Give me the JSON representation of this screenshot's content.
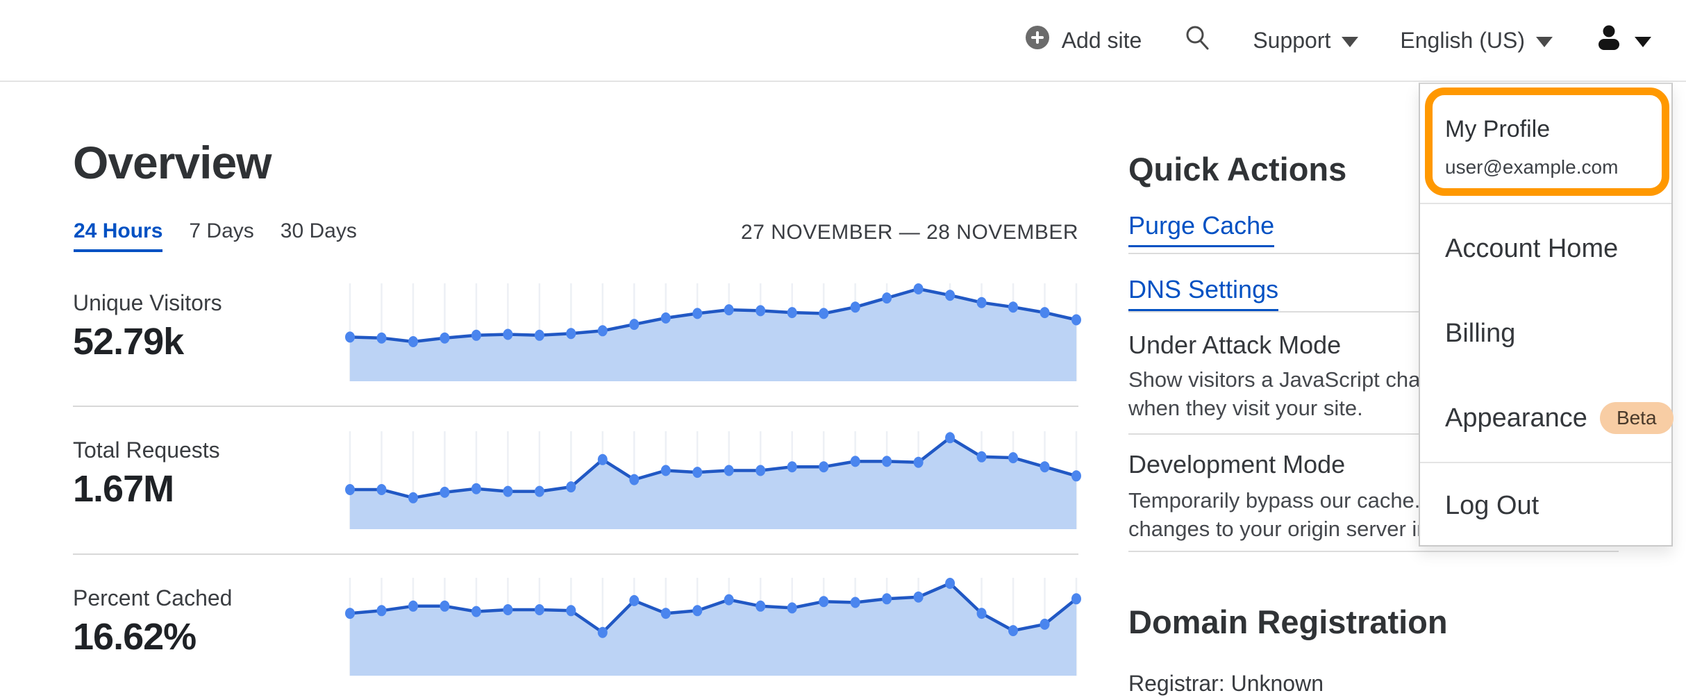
{
  "navbar": {
    "add_site_label": "Add site",
    "support_label": "Support",
    "language_label": "English (US)",
    "icons": {
      "add_site": "plus-circle",
      "search": "magnifier",
      "menu_caret": "triangle-down",
      "account": "person-silhouette"
    }
  },
  "overview": {
    "title": "Overview",
    "tabs": [
      {
        "label": "24 Hours",
        "active": true
      },
      {
        "label": "7 Days",
        "active": false
      },
      {
        "label": "30 Days",
        "active": false
      }
    ],
    "date_range": "27 NOVEMBER — 28 NOVEMBER",
    "metrics": [
      {
        "label": "Unique Visitors",
        "value": "52.79k"
      },
      {
        "label": "Total Requests",
        "value": "1.67M"
      },
      {
        "label": "Percent Cached",
        "value": "16.62%"
      }
    ]
  },
  "chart_data": [
    {
      "type": "area",
      "title": "Unique Visitors",
      "summary_value": "52.79k",
      "xlabel": "",
      "ylabel": "",
      "x_points": 24,
      "x_range": "27 November – 28 November (24-hour period, no tick labels shown)",
      "ylim": [
        0,
        1
      ],
      "value_scale": "normalized 0-1 (chart shows no numeric axis labels)",
      "grid": "vertical gridlines at every data point",
      "legend": "none",
      "values": [
        0.47,
        0.46,
        0.42,
        0.46,
        0.49,
        0.5,
        0.49,
        0.51,
        0.54,
        0.61,
        0.68,
        0.73,
        0.77,
        0.76,
        0.74,
        0.73,
        0.8,
        0.9,
        1.0,
        0.93,
        0.85,
        0.8,
        0.74,
        0.66
      ],
      "colors": {
        "line": "#2158c4",
        "dot": "#4a85ee",
        "fill": "#bcd3f5",
        "grid": "#edf0f5"
      }
    },
    {
      "type": "area",
      "title": "Total Requests",
      "summary_value": "1.67M",
      "xlabel": "",
      "ylabel": "",
      "x_points": 24,
      "x_range": "27 November – 28 November (24-hour period, no tick labels shown)",
      "ylim": [
        0,
        1
      ],
      "value_scale": "normalized 0-1 (chart shows no numeric axis labels)",
      "grid": "vertical gridlines at every data point",
      "legend": "none",
      "values": [
        0.42,
        0.42,
        0.33,
        0.39,
        0.43,
        0.4,
        0.4,
        0.45,
        0.75,
        0.53,
        0.63,
        0.61,
        0.63,
        0.63,
        0.67,
        0.67,
        0.73,
        0.73,
        0.72,
        0.99,
        0.78,
        0.77,
        0.67,
        0.57
      ],
      "colors": {
        "line": "#2158c4",
        "dot": "#4a85ee",
        "fill": "#bcd3f5",
        "grid": "#edf0f5"
      }
    },
    {
      "type": "area",
      "title": "Percent Cached",
      "summary_value": "16.62%",
      "xlabel": "",
      "ylabel": "",
      "x_points": 24,
      "x_range": "27 November – 28 November (24-hour period, no tick labels shown)",
      "ylim": [
        0,
        1
      ],
      "value_scale": "normalized 0-1 (chart shows no numeric axis labels)",
      "grid": "vertical gridlines at every data point",
      "legend": "none",
      "values": [
        0.67,
        0.7,
        0.75,
        0.75,
        0.69,
        0.71,
        0.71,
        0.7,
        0.46,
        0.81,
        0.67,
        0.7,
        0.82,
        0.75,
        0.73,
        0.8,
        0.79,
        0.83,
        0.85,
        1.0,
        0.67,
        0.48,
        0.55,
        0.83
      ],
      "colors": {
        "line": "#2158c4",
        "dot": "#4a85ee",
        "fill": "#bcd3f5",
        "grid": "#edf0f5"
      }
    }
  ],
  "quick_actions": {
    "title": "Quick Actions",
    "links": [
      {
        "label": "Purge Cache"
      },
      {
        "label": "DNS Settings"
      }
    ],
    "toggles": [
      {
        "title": "Under Attack Mode",
        "description_lines": [
          "Show visitors a JavaScript challenge",
          "when they visit your site."
        ]
      },
      {
        "title": "Development Mode",
        "description_lines": [
          "Temporarily bypass our cache. See",
          "changes to your origin server in realtime."
        ]
      }
    ]
  },
  "domain_registration": {
    "title": "Domain Registration",
    "registrar_line": "Registrar: Unknown"
  },
  "user_menu": {
    "profile": {
      "label": "My Profile",
      "email": "user@example.com",
      "highlighted": true
    },
    "items": [
      {
        "label": "Account Home"
      },
      {
        "label": "Billing"
      },
      {
        "label": "Appearance",
        "badge": "Beta"
      }
    ],
    "logout_label": "Log Out"
  },
  "colors": {
    "accent_blue": "#0051c3",
    "annotation_orange": "#ff9800",
    "beta_badge_bg": "#f8cda4",
    "beta_badge_text": "#4a3a2b",
    "chart_line": "#2158c4",
    "chart_dot": "#4a85ee",
    "chart_fill": "#bcd3f5",
    "chart_grid": "#edf0f5",
    "divider_gray": "#d8d8d8",
    "text_dark": "#2f3235"
  }
}
